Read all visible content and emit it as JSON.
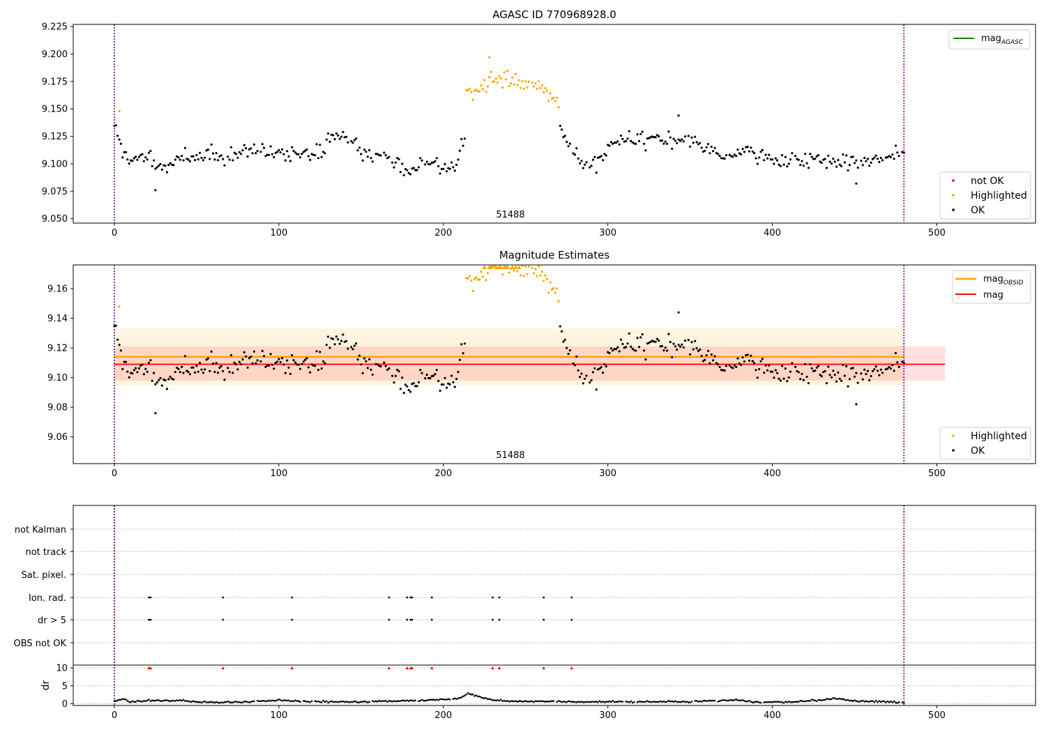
{
  "chart_data": [
    {
      "type": "scatter",
      "title": "AGASC ID 770968928.0",
      "xlim": [
        -25,
        560
      ],
      "ylim": [
        9.046,
        9.227
      ],
      "xticks": [
        0,
        100,
        200,
        300,
        400,
        500
      ],
      "yticks": [
        9.05,
        9.075,
        9.1,
        9.125,
        9.15,
        9.175,
        9.2,
        9.225
      ],
      "vlines": [
        0,
        480
      ],
      "annotation": {
        "text": "51488",
        "x": 240
      },
      "legend_top": [
        {
          "label": "mag",
          "sub": "AGASC",
          "color": "#008000"
        }
      ],
      "legend_bottom": [
        {
          "label": "not OK",
          "color": "#ff0000"
        },
        {
          "label": "Highlighted",
          "color": "#ffa500"
        },
        {
          "label": "OK",
          "color": "#000000"
        }
      ],
      "anchors": [
        [
          0,
          9.135
        ],
        [
          5,
          9.112
        ],
        [
          10,
          9.1
        ],
        [
          20,
          9.108
        ],
        [
          25,
          9.095
        ],
        [
          40,
          9.104
        ],
        [
          60,
          9.108
        ],
        [
          80,
          9.11
        ],
        [
          100,
          9.108
        ],
        [
          120,
          9.11
        ],
        [
          128,
          9.112
        ],
        [
          132,
          9.128
        ],
        [
          140,
          9.125
        ],
        [
          150,
          9.112
        ],
        [
          160,
          9.105
        ],
        [
          170,
          9.102
        ],
        [
          180,
          9.094
        ],
        [
          190,
          9.102
        ],
        [
          200,
          9.097
        ],
        [
          208,
          9.1
        ],
        [
          211,
          9.125
        ],
        [
          270,
          9.14
        ],
        [
          273,
          9.128
        ],
        [
          280,
          9.11
        ],
        [
          285,
          9.098
        ],
        [
          295,
          9.102
        ],
        [
          300,
          9.112
        ],
        [
          305,
          9.122
        ],
        [
          320,
          9.124
        ],
        [
          340,
          9.122
        ],
        [
          350,
          9.122
        ],
        [
          360,
          9.112
        ],
        [
          370,
          9.108
        ],
        [
          385,
          9.11
        ],
        [
          400,
          9.104
        ],
        [
          420,
          9.104
        ],
        [
          440,
          9.102
        ],
        [
          450,
          9.1
        ],
        [
          455,
          9.104
        ],
        [
          470,
          9.106
        ],
        [
          480,
          9.112
        ]
      ],
      "highlight_anchors": [
        [
          214,
          9.162
        ],
        [
          225,
          9.172
        ],
        [
          235,
          9.178
        ],
        [
          245,
          9.174
        ],
        [
          255,
          9.174
        ],
        [
          265,
          9.165
        ],
        [
          270,
          9.155
        ]
      ]
    },
    {
      "type": "scatter",
      "title": "Magnitude Estimates",
      "xlim": [
        -25,
        560
      ],
      "ylim": [
        9.042,
        9.176
      ],
      "xticks": [
        0,
        100,
        200,
        300,
        400,
        500
      ],
      "yticks": [
        9.06,
        9.08,
        9.1,
        9.12,
        9.14,
        9.16
      ],
      "vlines": [
        0,
        480
      ],
      "annotation": {
        "text": "51488",
        "x": 240
      },
      "mag_obsid": {
        "value": 9.114,
        "lo": 9.095,
        "hi": 9.133,
        "x0": 0,
        "x1": 480
      },
      "mag": {
        "value": 9.109,
        "lo": 9.098,
        "hi": 9.121,
        "x0": 0,
        "x1": 505
      },
      "legend_top": [
        {
          "label": "mag",
          "sub": "OBSID",
          "color": "#ffa500"
        },
        {
          "label": "mag",
          "sub": "",
          "color": "#ff0000"
        }
      ],
      "legend_bottom": [
        {
          "label": "Highlighted",
          "color": "#ffa500"
        },
        {
          "label": "OK",
          "color": "#000000"
        }
      ]
    },
    {
      "type": "scatter",
      "xlim": [
        -25,
        560
      ],
      "xticks": [
        0,
        100,
        200,
        300,
        400,
        500
      ],
      "vlines": [
        0,
        480
      ],
      "categories": [
        "not Kalman",
        "not track",
        "Sat. pixel.",
        "Ion. rad.",
        "dr > 5",
        "OBS not OK"
      ],
      "flag_x": [
        21,
        22,
        66,
        108,
        167,
        178,
        180,
        181,
        193,
        230,
        234,
        261,
        278
      ],
      "flag_rows": [
        "Ion. rad.",
        "dr > 5"
      ]
    },
    {
      "type": "scatter",
      "ylabel": "dr",
      "xlim": [
        -25,
        560
      ],
      "ylim": [
        -0.5,
        10.8
      ],
      "yticks": [
        0,
        5,
        10
      ],
      "xticks": [
        0,
        100,
        200,
        300,
        400,
        500
      ],
      "vlines": [
        0,
        480
      ],
      "clip_value": 10,
      "dr_anchors": [
        [
          0,
          0.7
        ],
        [
          5,
          1.3
        ],
        [
          10,
          0.5
        ],
        [
          20,
          0.9
        ],
        [
          30,
          0.8
        ],
        [
          40,
          1.0
        ],
        [
          50,
          0.5
        ],
        [
          70,
          0.4
        ],
        [
          80,
          0.5
        ],
        [
          100,
          1.0
        ],
        [
          120,
          0.6
        ],
        [
          140,
          0.5
        ],
        [
          160,
          0.6
        ],
        [
          180,
          0.8
        ],
        [
          200,
          1.2
        ],
        [
          210,
          1.6
        ],
        [
          215,
          2.8
        ],
        [
          220,
          2.2
        ],
        [
          230,
          1.0
        ],
        [
          250,
          0.6
        ],
        [
          270,
          0.7
        ],
        [
          280,
          0.4
        ],
        [
          300,
          0.6
        ],
        [
          330,
          0.5
        ],
        [
          350,
          0.6
        ],
        [
          380,
          1.1
        ],
        [
          390,
          0.4
        ],
        [
          410,
          0.5
        ],
        [
          430,
          1.0
        ],
        [
          437,
          1.5
        ],
        [
          450,
          0.8
        ],
        [
          470,
          0.5
        ],
        [
          480,
          0.3
        ]
      ]
    }
  ]
}
